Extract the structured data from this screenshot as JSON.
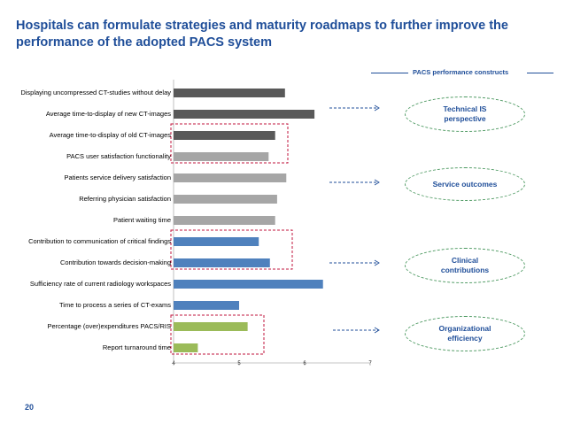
{
  "title": "Hospitals can formulate strategies and maturity roadmaps to further improve the performance of the adopted PACS system",
  "page_number": "20",
  "constructs_header": "PACS performance constructs",
  "constructs": [
    {
      "label": "Technical IS perspective"
    },
    {
      "label": "Service outcomes"
    },
    {
      "label": "Clinical contributions"
    },
    {
      "label": "Organizational efficiency"
    }
  ],
  "colors": {
    "title": "#1f4e99",
    "technical": "#595959",
    "service": "#a6a6a6",
    "clinical": "#4f81bd",
    "organizational": "#9bbb59",
    "highlight_box": "#c0143c",
    "construct_outline": "#4e9a62"
  },
  "chart_data": {
    "type": "bar",
    "orientation": "horizontal",
    "categories": [
      "Displaying uncompressed CT-studies without delay",
      "Average time-to-display of new CT-images",
      "Average time-to-display of old CT-images",
      "PACS user satisfaction functionality",
      "Patients service delivery satisfaction",
      "Referring physician satisfaction",
      "Patient waiting time",
      "Contribution to communication of critical findings",
      "Contribution towards decision-making",
      "Sufficiency rate of current radiology workspaces",
      "Time to process a series of CT-exams",
      "Percentage (over)expenditures PACS/RIS",
      "Report turnaround time"
    ],
    "values": [
      5.7,
      6.15,
      5.55,
      5.45,
      5.72,
      5.58,
      5.55,
      5.3,
      5.47,
      6.28,
      5.0,
      5.13,
      4.37
    ],
    "groups": [
      "technical",
      "technical",
      "technical",
      "service",
      "service",
      "service",
      "service",
      "clinical",
      "clinical",
      "clinical",
      "clinical",
      "organizational",
      "organizational"
    ],
    "xlim": [
      4,
      7
    ],
    "xticks": [
      "4",
      "5",
      "6",
      "7"
    ]
  }
}
